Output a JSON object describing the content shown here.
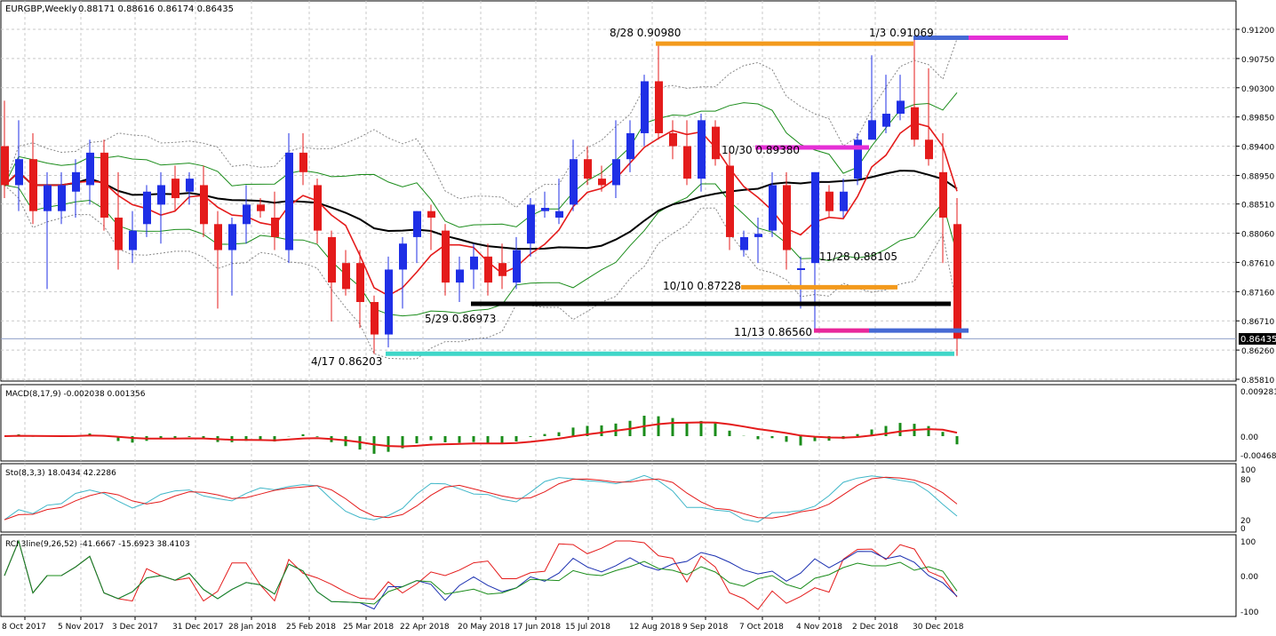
{
  "header": {
    "symbol": "EURGBP,Weekly",
    "ohlc": "0.88171 0.88616 0.86174 0.86435"
  },
  "main_axis": {
    "ticks": [
      "0.91200",
      "0.90750",
      "0.90300",
      "0.89850",
      "0.89400",
      "0.88950",
      "0.88510",
      "0.88060",
      "0.87610",
      "0.87160",
      "0.86710",
      "0.86260",
      "0.85810"
    ],
    "current_price": "0.86435"
  },
  "x_axis": {
    "labels": [
      "8 Oct 2017",
      "5 Nov 2017",
      "3 Dec 2017",
      "31 Dec 2017",
      "28 Jan 2018",
      "25 Feb 2018",
      "25 Mar 2018",
      "22 Apr 2018",
      "20 May 2018",
      "17 Jun 2018",
      "15 Jul 2018",
      "12 Aug 2018",
      "9 Sep 2018",
      "7 Oct 2018",
      "4 Nov 2018",
      "2 Dec 2018",
      "30 Dec 2018"
    ]
  },
  "annotations": [
    "8/28 0.90980",
    "1/3 0.91069",
    "10/30 0.89380",
    "10/10 0.87228",
    "11/28 0.88105",
    "5/29 0.86973",
    "11/13 0.86560",
    "4/17 0.86203"
  ],
  "macd": {
    "label": "MACD(8,17,9) -0.002038 0.001356",
    "ticks": [
      "0.009281",
      "0.00",
      "-0.004683"
    ]
  },
  "sto": {
    "label": "Sto(8,3,3) 18.0434 42.2286",
    "ticks": [
      "100",
      "80",
      "20",
      "0"
    ]
  },
  "rci": {
    "label": "RCI 3line(9,26,52) -41.6667 -15.6923 38.4103",
    "ticks": [
      "100",
      "0.00",
      "-100"
    ]
  },
  "colors": {
    "bull": "#1f2fe6",
    "bear": "#e41b1b",
    "ma_black": "#000000",
    "ma_red": "#e41b1b",
    "line_orange": "#f39a1c",
    "line_magenta": "#e52fd6",
    "line_pink": "#e8279a",
    "line_blue": "#4569d4",
    "line_black": "#000000",
    "line_teal": "#3fd6c8",
    "bb_green": "#1a8c1a",
    "cloud": "#888888"
  },
  "chart_data": {
    "type": "candlestick",
    "candles": [
      {
        "o": 0.894,
        "h": 0.901,
        "l": 0.886,
        "c": 0.888
      },
      {
        "o": 0.888,
        "h": 0.898,
        "l": 0.884,
        "c": 0.892
      },
      {
        "o": 0.892,
        "h": 0.896,
        "l": 0.882,
        "c": 0.884
      },
      {
        "o": 0.884,
        "h": 0.89,
        "l": 0.872,
        "c": 0.888
      },
      {
        "o": 0.884,
        "h": 0.89,
        "l": 0.882,
        "c": 0.888
      },
      {
        "o": 0.887,
        "h": 0.892,
        "l": 0.883,
        "c": 0.89
      },
      {
        "o": 0.888,
        "h": 0.895,
        "l": 0.885,
        "c": 0.893
      },
      {
        "o": 0.893,
        "h": 0.895,
        "l": 0.881,
        "c": 0.883
      },
      {
        "o": 0.883,
        "h": 0.89,
        "l": 0.875,
        "c": 0.878
      },
      {
        "o": 0.878,
        "h": 0.884,
        "l": 0.876,
        "c": 0.881
      },
      {
        "o": 0.882,
        "h": 0.888,
        "l": 0.88,
        "c": 0.887
      },
      {
        "o": 0.885,
        "h": 0.89,
        "l": 0.879,
        "c": 0.888
      },
      {
        "o": 0.889,
        "h": 0.891,
        "l": 0.884,
        "c": 0.886
      },
      {
        "o": 0.887,
        "h": 0.89,
        "l": 0.885,
        "c": 0.889
      },
      {
        "o": 0.888,
        "h": 0.891,
        "l": 0.88,
        "c": 0.882
      },
      {
        "o": 0.882,
        "h": 0.884,
        "l": 0.869,
        "c": 0.878
      },
      {
        "o": 0.878,
        "h": 0.883,
        "l": 0.871,
        "c": 0.882
      },
      {
        "o": 0.882,
        "h": 0.888,
        "l": 0.879,
        "c": 0.885
      },
      {
        "o": 0.885,
        "h": 0.886,
        "l": 0.883,
        "c": 0.884
      },
      {
        "o": 0.883,
        "h": 0.887,
        "l": 0.878,
        "c": 0.88
      },
      {
        "o": 0.878,
        "h": 0.896,
        "l": 0.876,
        "c": 0.893
      },
      {
        "o": 0.893,
        "h": 0.896,
        "l": 0.888,
        "c": 0.89
      },
      {
        "o": 0.888,
        "h": 0.889,
        "l": 0.879,
        "c": 0.881
      },
      {
        "o": 0.88,
        "h": 0.881,
        "l": 0.867,
        "c": 0.873
      },
      {
        "o": 0.876,
        "h": 0.878,
        "l": 0.871,
        "c": 0.872
      },
      {
        "o": 0.876,
        "h": 0.878,
        "l": 0.866,
        "c": 0.87
      },
      {
        "o": 0.87,
        "h": 0.871,
        "l": 0.862,
        "c": 0.865
      },
      {
        "o": 0.865,
        "h": 0.877,
        "l": 0.863,
        "c": 0.875
      },
      {
        "o": 0.875,
        "h": 0.88,
        "l": 0.869,
        "c": 0.879
      },
      {
        "o": 0.88,
        "h": 0.884,
        "l": 0.876,
        "c": 0.884
      },
      {
        "o": 0.884,
        "h": 0.885,
        "l": 0.878,
        "c": 0.883
      },
      {
        "o": 0.881,
        "h": 0.882,
        "l": 0.871,
        "c": 0.873
      },
      {
        "o": 0.873,
        "h": 0.877,
        "l": 0.87,
        "c": 0.875
      },
      {
        "o": 0.875,
        "h": 0.879,
        "l": 0.872,
        "c": 0.877
      },
      {
        "o": 0.877,
        "h": 0.879,
        "l": 0.871,
        "c": 0.873
      },
      {
        "o": 0.876,
        "h": 0.879,
        "l": 0.872,
        "c": 0.874
      },
      {
        "o": 0.873,
        "h": 0.88,
        "l": 0.872,
        "c": 0.878
      },
      {
        "o": 0.879,
        "h": 0.886,
        "l": 0.877,
        "c": 0.885
      },
      {
        "o": 0.884,
        "h": 0.887,
        "l": 0.883,
        "c": 0.8845
      },
      {
        "o": 0.883,
        "h": 0.889,
        "l": 0.882,
        "c": 0.884
      },
      {
        "o": 0.885,
        "h": 0.895,
        "l": 0.884,
        "c": 0.892
      },
      {
        "o": 0.892,
        "h": 0.894,
        "l": 0.888,
        "c": 0.889
      },
      {
        "o": 0.889,
        "h": 0.891,
        "l": 0.887,
        "c": 0.888
      },
      {
        "o": 0.888,
        "h": 0.898,
        "l": 0.886,
        "c": 0.892
      },
      {
        "o": 0.892,
        "h": 0.898,
        "l": 0.89,
        "c": 0.896
      },
      {
        "o": 0.896,
        "h": 0.905,
        "l": 0.894,
        "c": 0.904
      },
      {
        "o": 0.904,
        "h": 0.9098,
        "l": 0.895,
        "c": 0.896
      },
      {
        "o": 0.896,
        "h": 0.898,
        "l": 0.892,
        "c": 0.894
      },
      {
        "o": 0.894,
        "h": 0.898,
        "l": 0.888,
        "c": 0.889
      },
      {
        "o": 0.889,
        "h": 0.899,
        "l": 0.887,
        "c": 0.898
      },
      {
        "o": 0.897,
        "h": 0.898,
        "l": 0.891,
        "c": 0.892
      },
      {
        "o": 0.891,
        "h": 0.8938,
        "l": 0.878,
        "c": 0.88
      },
      {
        "o": 0.878,
        "h": 0.881,
        "l": 0.877,
        "c": 0.88
      },
      {
        "o": 0.88,
        "h": 0.883,
        "l": 0.876,
        "c": 0.8805
      },
      {
        "o": 0.881,
        "h": 0.89,
        "l": 0.88,
        "c": 0.888
      },
      {
        "o": 0.888,
        "h": 0.89,
        "l": 0.875,
        "c": 0.878
      },
      {
        "o": 0.875,
        "h": 0.877,
        "l": 0.869,
        "c": 0.8752
      },
      {
        "o": 0.876,
        "h": 0.89,
        "l": 0.8656,
        "c": 0.89
      },
      {
        "o": 0.887,
        "h": 0.888,
        "l": 0.883,
        "c": 0.884
      },
      {
        "o": 0.884,
        "h": 0.889,
        "l": 0.883,
        "c": 0.887
      },
      {
        "o": 0.889,
        "h": 0.896,
        "l": 0.888,
        "c": 0.895
      },
      {
        "o": 0.895,
        "h": 0.908,
        "l": 0.895,
        "c": 0.898
      },
      {
        "o": 0.897,
        "h": 0.905,
        "l": 0.896,
        "c": 0.899
      },
      {
        "o": 0.899,
        "h": 0.905,
        "l": 0.898,
        "c": 0.901
      },
      {
        "o": 0.9,
        "h": 0.9107,
        "l": 0.894,
        "c": 0.895
      },
      {
        "o": 0.895,
        "h": 0.906,
        "l": 0.891,
        "c": 0.892
      },
      {
        "o": 0.89,
        "h": 0.896,
        "l": 0.876,
        "c": 0.883
      },
      {
        "o": 0.882,
        "h": 0.886,
        "l": 0.8617,
        "c": 0.8644
      }
    ]
  }
}
